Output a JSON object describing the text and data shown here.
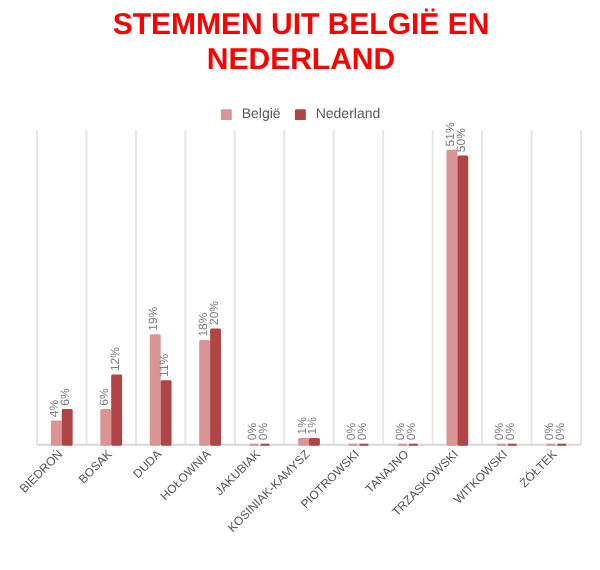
{
  "chart_data": {
    "type": "bar",
    "title": "STEMMEN UIT BELGIË EN NEDERLAND",
    "categories": [
      "BIEDROŃ",
      "BOSAK",
      "DUDA",
      "HOŁOWNIA",
      "JAKUBIAK",
      "KOSINIAK-KAMYSZ",
      "PIOTROWSKI",
      "TANAJNO",
      "TRZASKOWSKI",
      "WITKOWSKI",
      "ŻÓŁTEK"
    ],
    "series": [
      {
        "name": "België",
        "color": "#d99594",
        "values": [
          4,
          6,
          19,
          18,
          0,
          1,
          0,
          0,
          51,
          0,
          0
        ],
        "value_labels": [
          "4%",
          "6%",
          "19%",
          "18%",
          "0%",
          "1%",
          "0%",
          "0%",
          "51%",
          "0%",
          "0%"
        ]
      },
      {
        "name": "Nederland",
        "color": "#b04545",
        "values": [
          6,
          12,
          11,
          20,
          0,
          1,
          0,
          0,
          50,
          0,
          0
        ],
        "value_labels": [
          "6%",
          "12%",
          "11%",
          "20%",
          "0%",
          "1%",
          "0%",
          "0%",
          "50%",
          "0%",
          "0%"
        ]
      }
    ],
    "legend": "top",
    "grid": "x"
  }
}
